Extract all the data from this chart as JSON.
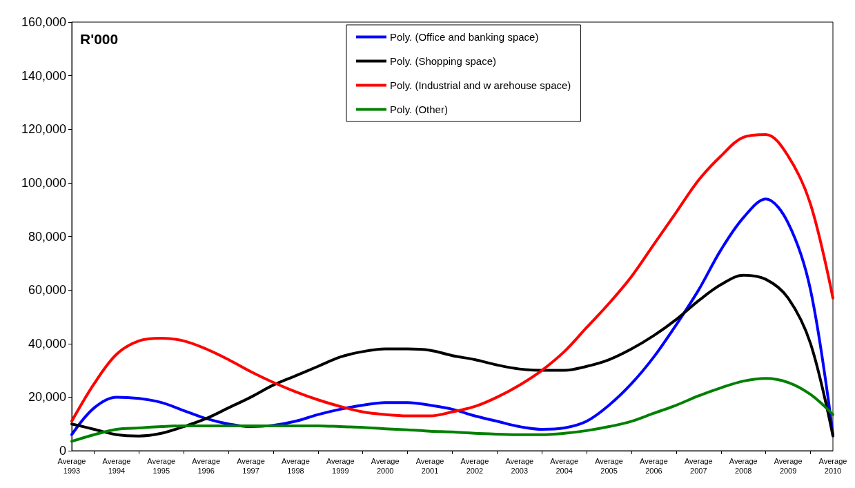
{
  "chart_data": {
    "type": "line",
    "ylabel": "R'000",
    "marker": "none",
    "line_style": "solid",
    "grid": false,
    "legend": "top",
    "categories": [
      "Average 1993",
      null,
      "Average 1994",
      null,
      "Average 1995",
      null,
      "Average 1996",
      null,
      "Average 1997",
      null,
      "Average 1998",
      null,
      "Average 1999",
      null,
      "Average 2000",
      null,
      "Average 2001",
      null,
      "Average 2002",
      null,
      "Average 2003",
      null,
      "Average 2004",
      null,
      "Average 2005",
      null,
      "Average 2006",
      null,
      "Average 2007",
      null,
      "Average 2008",
      null,
      "Average 2009",
      null,
      "Average 2010"
    ],
    "ylim": [
      0,
      160000
    ],
    "yticks": [
      0,
      {
        "value": 20000,
        "label": "20,000"
      },
      {
        "value": 40000,
        "label": "40,000"
      },
      {
        "value": 60000,
        "label": "60,000"
      },
      {
        "value": 80000,
        "label": "80,000"
      },
      {
        "value": 100000,
        "label": "100,000"
      },
      {
        "value": 120000,
        "label": "120,000"
      },
      {
        "value": 140000,
        "label": "140,000"
      },
      {
        "value": 160000,
        "label": "160,000"
      }
    ],
    "series": [
      {
        "name": "Poly. (Office and banking space)",
        "color": "#0000ff",
        "values": [
          6000,
          16000,
          20000,
          19500,
          18000,
          15000,
          12000,
          10000,
          9000,
          9500,
          11000,
          13500,
          15500,
          17000,
          18000,
          18000,
          17000,
          15500,
          13000,
          11000,
          9000,
          8000,
          8500,
          11000,
          17000,
          25000,
          35000,
          47000,
          60000,
          75000,
          87000,
          94000,
          85000,
          60000,
          6000
        ]
      },
      {
        "name": "Poly. (Shopping space)",
        "color": "#000000",
        "values": [
          10000,
          8000,
          6000,
          5500,
          6500,
          9000,
          12000,
          16000,
          20000,
          24500,
          28000,
          31500,
          35000,
          37000,
          38000,
          38000,
          37500,
          35500,
          34000,
          32000,
          30500,
          30000,
          30000,
          31500,
          34000,
          38000,
          43000,
          49000,
          56000,
          62000,
          65500,
          64000,
          57000,
          40000,
          5500
        ]
      },
      {
        "name": "Poly. (Industrial and w arehouse space)",
        "color": "#ff0000",
        "values": [
          11000,
          25000,
          36000,
          41000,
          42000,
          41000,
          38000,
          34000,
          29500,
          25500,
          22000,
          19000,
          16500,
          14500,
          13500,
          13000,
          13000,
          14500,
          16500,
          20000,
          24500,
          30000,
          37000,
          46000,
          55000,
          65000,
          77000,
          89000,
          101000,
          110000,
          117000,
          118000,
          110000,
          92000,
          57000
        ]
      },
      {
        "name": "Poly. (Other)",
        "color": "#008000",
        "values": [
          3500,
          6000,
          8000,
          8500,
          9000,
          9300,
          9300,
          9300,
          9300,
          9300,
          9300,
          9300,
          9000,
          8700,
          8200,
          7800,
          7300,
          7000,
          6500,
          6200,
          6000,
          6000,
          6500,
          7500,
          9000,
          11000,
          14000,
          17000,
          20500,
          23500,
          26000,
          27000,
          25500,
          21000,
          13500
        ]
      }
    ]
  }
}
